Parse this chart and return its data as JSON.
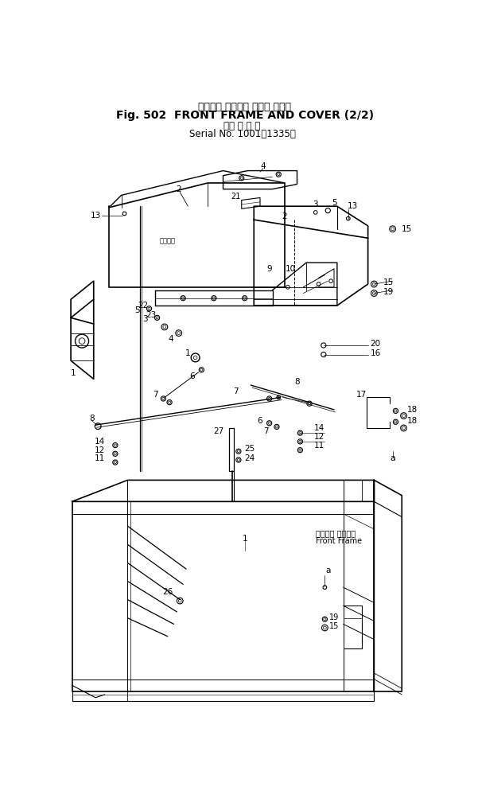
{
  "title_jp": "フロント フレーム および カバー",
  "title_en": "Fig. 502  FRONT FRAME AND COVER (2/2)",
  "subtitle_jp": "（適 用 号 機",
  "subtitle_en": "Serial No. 1001～1335）",
  "label_note_jp": "フロント フレーム",
  "label_note_en": "Front Frame",
  "bg_color": "#ffffff",
  "line_color": "#000000"
}
